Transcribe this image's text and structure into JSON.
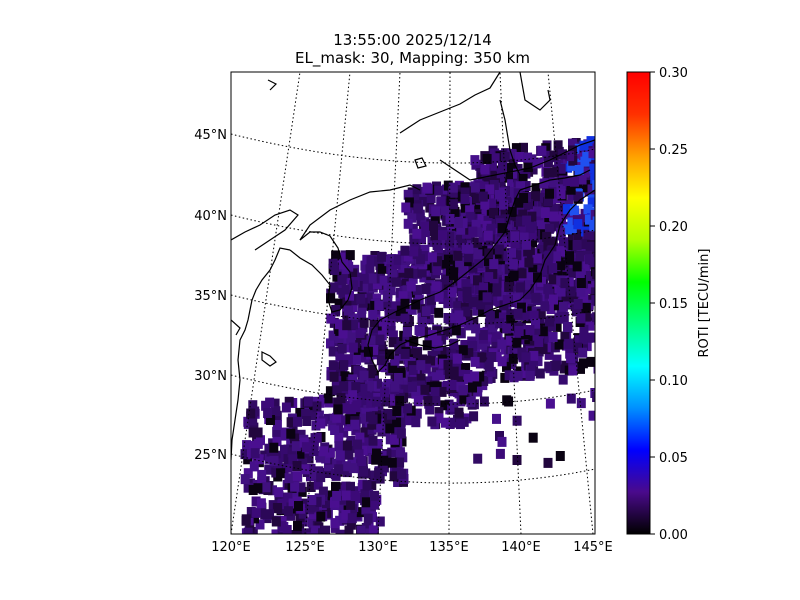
{
  "title": {
    "line1": "13:55:00 2025/12/14",
    "line2": "EL_mask: 30, Mapping: 350 km"
  },
  "map": {
    "projection": "lambert-conformal-conic",
    "lon_ticks": [
      "120°E",
      "125°E",
      "130°E",
      "135°E",
      "140°E",
      "145°E"
    ],
    "lat_ticks": [
      "45°N",
      "40°N",
      "35°N",
      "30°N",
      "25°N"
    ],
    "lon_range": [
      120,
      145
    ],
    "lat_range": [
      20,
      49
    ],
    "gridlines": "dotted",
    "coastline_color": "#000000",
    "dominant_value_color": "#3c0a78"
  },
  "colorbar": {
    "label": "ROTI [TECU/min]",
    "ticks": [
      "0.00",
      "0.05",
      "0.10",
      "0.15",
      "0.20",
      "0.25",
      "0.30"
    ],
    "range": [
      0.0,
      0.3
    ],
    "colormap": "nipy_spectral",
    "stops": [
      "#000000",
      "#4a0a8c",
      "#0000ff",
      "#0090ff",
      "#00ffff",
      "#00ff80",
      "#00ff00",
      "#b0ff00",
      "#ffff00",
      "#ffa000",
      "#ff3000",
      "#ff0000"
    ]
  }
}
